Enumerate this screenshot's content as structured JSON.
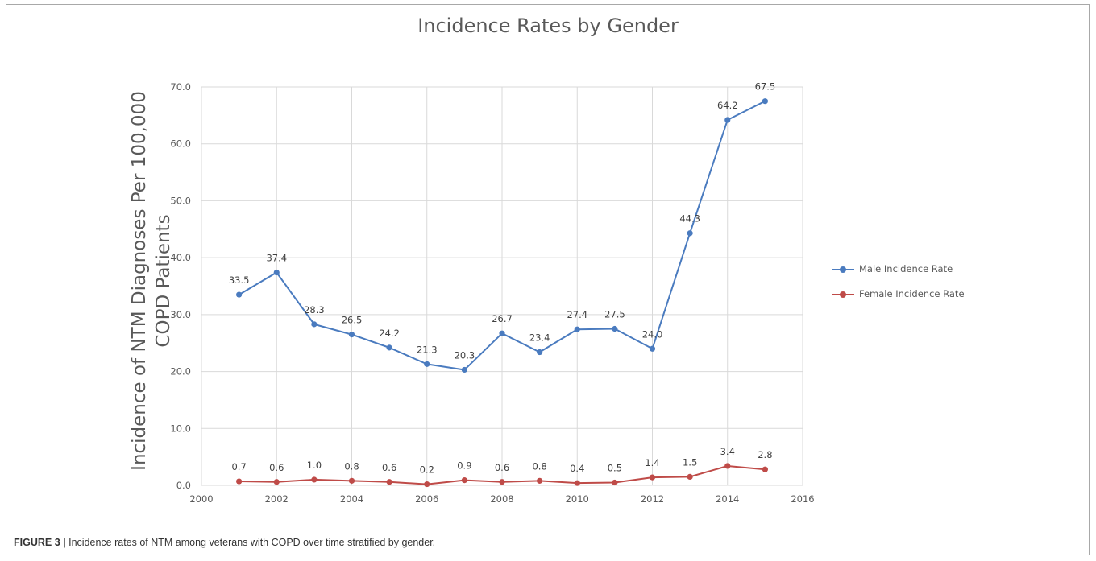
{
  "chart_data": {
    "type": "line",
    "title": "Incidence Rates by Gender",
    "ylabel_lines": [
      "Incidence of NTM Diagnoses Per 100,000",
      "COPD Patients"
    ],
    "xlabel": "",
    "xlim": [
      2000,
      2016
    ],
    "ylim": [
      0,
      70
    ],
    "x_ticks": [
      2000,
      2002,
      2004,
      2006,
      2008,
      2010,
      2012,
      2014,
      2016
    ],
    "y_ticks": [
      "0.0",
      "10.0",
      "20.0",
      "30.0",
      "40.0",
      "50.0",
      "60.0",
      "70.0"
    ],
    "grid": true,
    "legend_position": "right",
    "x": [
      2001,
      2002,
      2003,
      2004,
      2005,
      2006,
      2007,
      2008,
      2009,
      2010,
      2011,
      2012,
      2013,
      2014,
      2015
    ],
    "series": [
      {
        "name": "Male Incidence Rate",
        "color": "#4a7bbf",
        "values": [
          33.5,
          37.4,
          28.3,
          26.5,
          24.2,
          21.3,
          20.3,
          26.7,
          23.4,
          27.4,
          27.5,
          24.0,
          44.3,
          64.2,
          67.5
        ],
        "labels": [
          "33.5",
          "37.4",
          "28.3",
          "26.5",
          "24.2",
          "21.3",
          "20.3",
          "26.7",
          "23.4",
          "27.4",
          "27.5",
          "24.0",
          "44.3",
          "64.2",
          "67.5"
        ]
      },
      {
        "name": "Female Incidence Rate",
        "color": "#bf4b48",
        "values": [
          0.7,
          0.6,
          1.0,
          0.8,
          0.6,
          0.2,
          0.9,
          0.6,
          0.8,
          0.4,
          0.5,
          1.4,
          1.5,
          3.4,
          2.8
        ],
        "labels": [
          "0.7",
          "0.6",
          "1.0",
          "0.8",
          "0.6",
          "0.2",
          "0.9",
          "0.6",
          "0.8",
          "0.4",
          "0.5",
          "1.4",
          "1.5",
          "3.4",
          "2.8"
        ]
      }
    ]
  },
  "caption": {
    "label": "FIGURE 3 |",
    "text": " Incidence rates of NTM among veterans with COPD over time stratified by gender."
  },
  "colors": {
    "grid": "#d9d9d9",
    "axis_text": "#595959",
    "frame": "#a8a8a8"
  }
}
